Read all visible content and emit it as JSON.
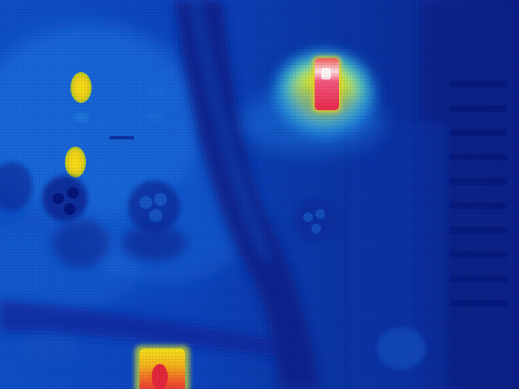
{
  "image": {
    "kind": "thermal-infrared-photo",
    "palette": {
      "coldest": "#040f70",
      "cold": "#0a2ea8",
      "cool": "#1460d8",
      "mid": "#1d7fe6",
      "warm": "#2fb0d8",
      "yellow": "#f2f01a",
      "orange": "#f4a81c",
      "red": "#ec2a3c",
      "hottest": "#ffffff"
    },
    "objects": [
      "left-panel",
      "cable-bundle",
      "right-panel",
      "round-connector",
      "hot-component-red",
      "hot-led-yellow",
      "hot-component-bottom"
    ]
  }
}
